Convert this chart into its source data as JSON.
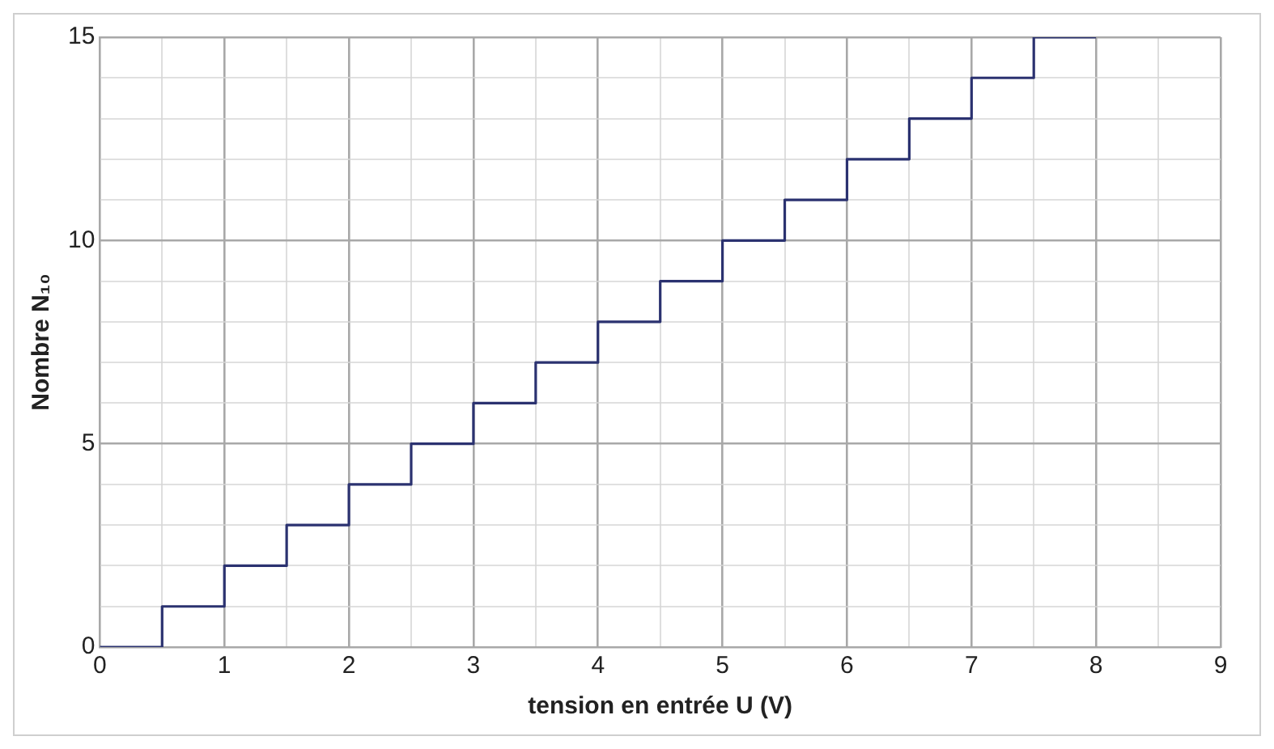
{
  "chart_data": {
    "type": "step",
    "xlabel": "tension en entrée U (V)",
    "ylabel": "Nombre N₁₀",
    "x": [
      0,
      0.5,
      1,
      1.5,
      2,
      2.5,
      3,
      3.5,
      4,
      4.5,
      5,
      5.5,
      6,
      6.5,
      7,
      7.5,
      8
    ],
    "series": [
      {
        "color": "#2b3270",
        "values": [
          0,
          1,
          2,
          3,
          4,
          5,
          6,
          7,
          8,
          9,
          10,
          11,
          12,
          13,
          14,
          15,
          15
        ]
      }
    ],
    "xlim": [
      0,
      9
    ],
    "xticks": [
      0,
      {
        "value": 0.5,
        "label": null
      },
      1,
      {
        "value": 1.5,
        "label": null
      },
      2,
      {
        "value": 2.5,
        "label": null
      },
      3,
      {
        "value": 3.5,
        "label": null
      },
      4,
      {
        "value": 4.5,
        "label": null
      },
      5,
      {
        "value": 5.5,
        "label": null
      },
      6,
      {
        "value": 6.5,
        "label": null
      },
      7,
      {
        "value": 7.5,
        "label": null
      },
      8,
      {
        "value": 8.5,
        "label": null
      },
      9
    ],
    "ylim": [
      0,
      15
    ],
    "yticks": [
      0,
      {
        "value": 1,
        "label": null
      },
      {
        "value": 2,
        "label": null
      },
      {
        "value": 3,
        "label": null
      },
      {
        "value": 4,
        "label": null
      },
      5,
      {
        "value": 6,
        "label": null
      },
      {
        "value": 7,
        "label": null
      },
      {
        "value": 8,
        "label": null
      },
      {
        "value": 9,
        "label": null
      },
      10,
      {
        "value": 11,
        "label": null
      },
      {
        "value": 12,
        "label": null
      },
      {
        "value": 13,
        "label": null
      },
      {
        "value": 14,
        "label": null
      },
      15
    ],
    "grid": true,
    "line_style": "solid",
    "marker": "none"
  }
}
